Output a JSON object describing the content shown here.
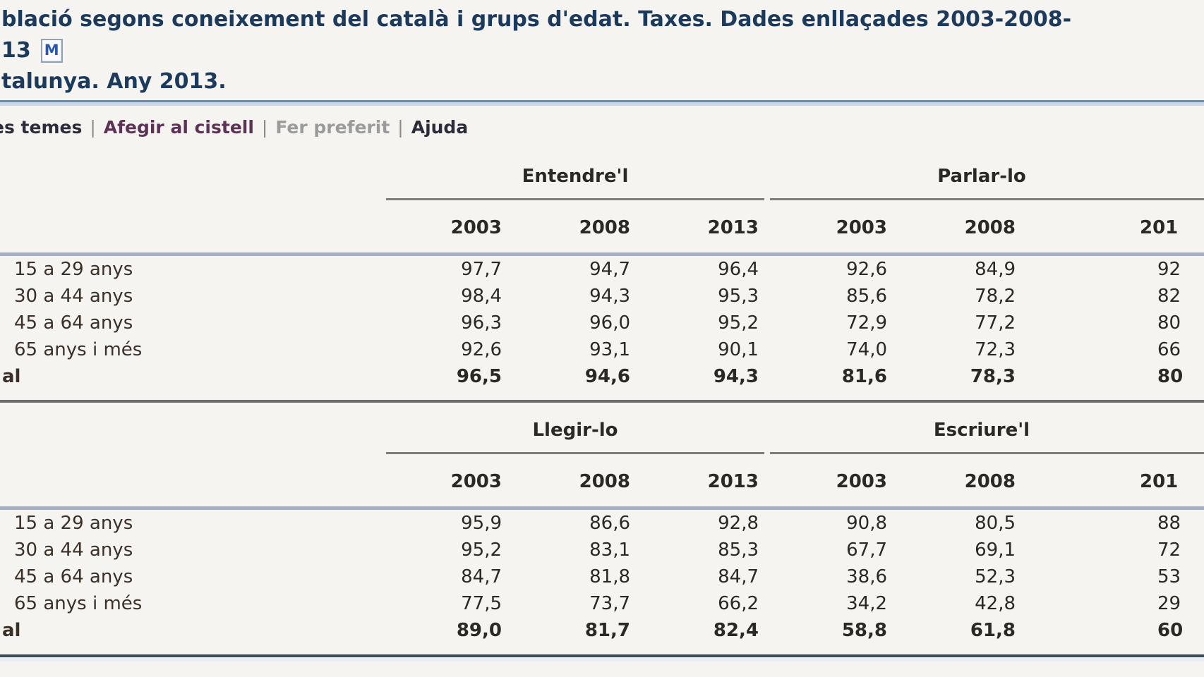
{
  "header": {
    "title_line1": "blació segons coneixement del català i grups d'edat. Taxes. Dades enllaçades 2003-2008-",
    "title_line2": "13",
    "methodology_badge": "M",
    "title_line3": "talunya. Any 2013."
  },
  "menu": {
    "separator": "|",
    "items": [
      {
        "label": "es temes",
        "style": "link"
      },
      {
        "label": "Afegir al cistell",
        "style": "visited"
      },
      {
        "label": "Fer preferit",
        "style": "muted"
      },
      {
        "label": "Ajuda",
        "style": "link"
      }
    ]
  },
  "tables": [
    {
      "groups": [
        {
          "label": "Entendre'l"
        },
        {
          "label": "Parlar-lo"
        }
      ],
      "years": [
        "2003",
        "2008",
        "2013",
        "2003",
        "2008",
        "201"
      ],
      "rows": [
        {
          "label": "15 a 29 anys",
          "values": [
            "97,7",
            "94,7",
            "96,4",
            "92,6",
            "84,9",
            "92"
          ],
          "bold": false
        },
        {
          "label": "30 a 44 anys",
          "values": [
            "98,4",
            "94,3",
            "95,3",
            "85,6",
            "78,2",
            "82"
          ],
          "bold": false
        },
        {
          "label": "45 a 64 anys",
          "values": [
            "96,3",
            "96,0",
            "95,2",
            "72,9",
            "77,2",
            "80"
          ],
          "bold": false
        },
        {
          "label": "65 anys i més",
          "values": [
            "92,6",
            "93,1",
            "90,1",
            "74,0",
            "72,3",
            "66"
          ],
          "bold": false
        },
        {
          "label": "al",
          "values": [
            "96,5",
            "94,6",
            "94,3",
            "81,6",
            "78,3",
            "80"
          ],
          "bold": true
        }
      ]
    },
    {
      "groups": [
        {
          "label": "Llegir-lo"
        },
        {
          "label": "Escriure'l"
        }
      ],
      "years": [
        "2003",
        "2008",
        "2013",
        "2003",
        "2008",
        "201"
      ],
      "rows": [
        {
          "label": "15 a 29 anys",
          "values": [
            "95,9",
            "86,6",
            "92,8",
            "90,8",
            "80,5",
            "88"
          ],
          "bold": false
        },
        {
          "label": "30 a 44 anys",
          "values": [
            "95,2",
            "83,1",
            "85,3",
            "67,7",
            "69,1",
            "72"
          ],
          "bold": false
        },
        {
          "label": "45 a 64 anys",
          "values": [
            "84,7",
            "81,8",
            "84,7",
            "38,6",
            "52,3",
            "53"
          ],
          "bold": false
        },
        {
          "label": "65 anys i més",
          "values": [
            "77,5",
            "73,7",
            "66,2",
            "34,2",
            "42,8",
            "29"
          ],
          "bold": false
        },
        {
          "label": "al",
          "values": [
            "89,0",
            "81,7",
            "82,4",
            "58,8",
            "61,8",
            "60"
          ],
          "bold": true
        }
      ]
    }
  ],
  "colors": {
    "background": "#f5f4f1",
    "title_text": "#1c3a5c",
    "link": "#2b2b3a",
    "visited_link": "#5c3355",
    "muted_link": "#9b9b9b",
    "table_text": "#2c2824",
    "header_rule_blue": "#ccd8e6",
    "inner_rule_blue": "#a6b0bf",
    "section_rule_dark": "#6b6b6b"
  }
}
